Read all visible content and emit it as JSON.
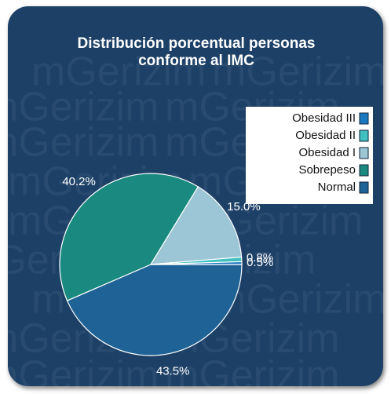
{
  "chart_data": {
    "type": "pie",
    "title": [
      "Distribución porcentual personas",
      "conforme al IMC"
    ],
    "watermark": "mGerizim",
    "categories": [
      "Normal",
      "Sobrepeso",
      "Obesidad I",
      "Obesidad II",
      "Obesidad III"
    ],
    "values": [
      43.5,
      40.2,
      15.0,
      0.8,
      0.5
    ],
    "value_labels": [
      "43.5%",
      "40.2%",
      "15.0%",
      "0.8%",
      "0.5%"
    ],
    "colors": [
      "#1f6396",
      "#1a8a80",
      "#9cc6d6",
      "#40c0c0",
      "#1a78c0"
    ],
    "legend": "upper-right"
  }
}
